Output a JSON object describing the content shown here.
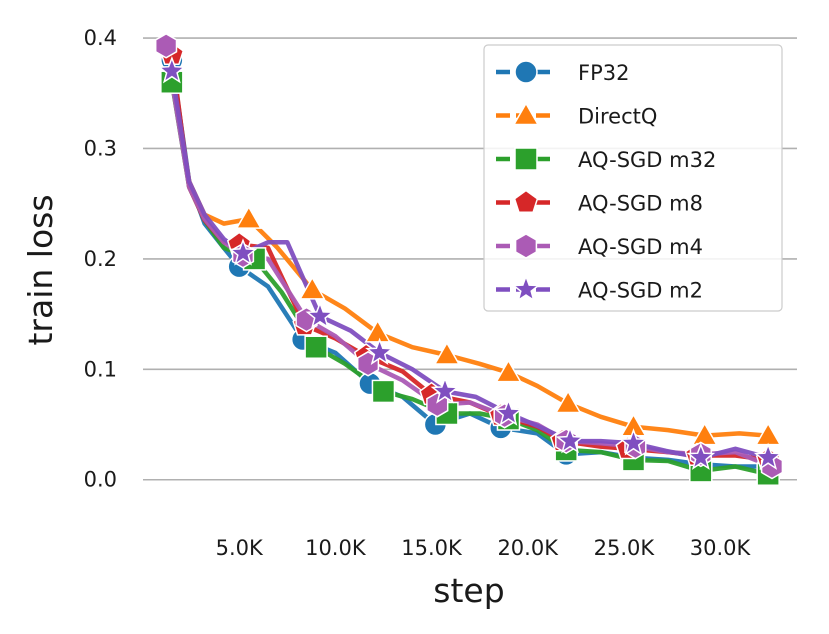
{
  "chart_data": {
    "type": "line",
    "title": "",
    "xlabel": "step",
    "ylabel": "train loss",
    "xlim": [
      0,
      34000
    ],
    "ylim": [
      -0.012,
      0.41
    ],
    "xticks": [
      5000,
      10000,
      15000,
      20000,
      25000,
      30000
    ],
    "xtick_labels": [
      "5.0K",
      "10.0K",
      "15.0K",
      "20.0K",
      "25.0K",
      "30.0K"
    ],
    "yticks": [
      0.0,
      0.1,
      0.2,
      0.3,
      0.4
    ],
    "ytick_labels": [
      "0.0",
      "0.1",
      "0.2",
      "0.3",
      "0.4"
    ],
    "grid": "horizontal",
    "legend_position": "top-right",
    "series": [
      {
        "name": "FP32",
        "color": "#1f77b4",
        "marker": "circle",
        "x": [
          1500,
          2400,
          3200,
          4200,
          5000,
          6500,
          8300,
          10000,
          11800,
          13500,
          15200,
          17000,
          18600,
          20500,
          22000,
          23800,
          25500,
          27300,
          29000,
          30800,
          32500
        ],
        "y": [
          0.38,
          0.27,
          0.232,
          0.21,
          0.193,
          0.175,
          0.127,
          0.115,
          0.087,
          0.075,
          0.05,
          0.06,
          0.047,
          0.042,
          0.023,
          0.025,
          0.02,
          0.018,
          0.014,
          0.012,
          0.012
        ],
        "marker_x": [
          1500,
          5000,
          8300,
          11800,
          15200,
          18600,
          22000,
          25500,
          29000,
          32500
        ],
        "marker_y": [
          0.38,
          0.193,
          0.127,
          0.087,
          0.05,
          0.047,
          0.023,
          0.02,
          0.014,
          0.012
        ]
      },
      {
        "name": "DirectQ",
        "color": "#ff7f0e",
        "marker": "triangle",
        "x": [
          1500,
          2400,
          3200,
          4200,
          5500,
          7000,
          8800,
          10500,
          12200,
          14000,
          15800,
          17500,
          19000,
          20500,
          22100,
          23800,
          25500,
          27300,
          29200,
          31000,
          32500
        ],
        "y": [
          0.37,
          0.27,
          0.24,
          0.232,
          0.236,
          0.21,
          0.172,
          0.155,
          0.133,
          0.12,
          0.113,
          0.105,
          0.097,
          0.085,
          0.069,
          0.057,
          0.048,
          0.045,
          0.04,
          0.042,
          0.04
        ],
        "marker_x": [
          5500,
          8800,
          12200,
          15800,
          19000,
          22100,
          25500,
          29200,
          32500
        ],
        "marker_y": [
          0.236,
          0.172,
          0.133,
          0.113,
          0.097,
          0.069,
          0.048,
          0.04,
          0.04
        ]
      },
      {
        "name": "AQ-SGD m32",
        "color": "#2ca02c",
        "marker": "square",
        "x": [
          1500,
          2400,
          3200,
          4200,
          5800,
          7200,
          9000,
          10500,
          12500,
          14000,
          15800,
          17500,
          19000,
          20500,
          22000,
          23800,
          25500,
          27300,
          29000,
          30800,
          32500
        ],
        "y": [
          0.36,
          0.265,
          0.235,
          0.21,
          0.2,
          0.17,
          0.12,
          0.105,
          0.08,
          0.073,
          0.06,
          0.06,
          0.055,
          0.045,
          0.027,
          0.025,
          0.018,
          0.017,
          0.008,
          0.012,
          0.005
        ],
        "marker_x": [
          1500,
          5800,
          9000,
          12500,
          15800,
          19000,
          22000,
          25500,
          29000,
          32500
        ],
        "marker_y": [
          0.36,
          0.2,
          0.12,
          0.08,
          0.06,
          0.055,
          0.027,
          0.018,
          0.008,
          0.005
        ]
      },
      {
        "name": "AQ-SGD m8",
        "color": "#d62728",
        "marker": "pentagon",
        "x": [
          1500,
          2400,
          3200,
          4200,
          5000,
          6500,
          8400,
          10000,
          11600,
          13500,
          15000,
          17000,
          18600,
          20500,
          21800,
          23800,
          25200,
          27300,
          28800,
          30800,
          32500
        ],
        "y": [
          0.385,
          0.265,
          0.235,
          0.215,
          0.213,
          0.21,
          0.14,
          0.128,
          0.112,
          0.098,
          0.077,
          0.07,
          0.058,
          0.048,
          0.035,
          0.03,
          0.028,
          0.025,
          0.022,
          0.022,
          0.018
        ],
        "marker_x": [
          1500,
          5000,
          8400,
          11600,
          15000,
          18600,
          21800,
          25200,
          28800,
          32500
        ],
        "marker_y": [
          0.385,
          0.213,
          0.14,
          0.112,
          0.077,
          0.058,
          0.035,
          0.028,
          0.022,
          0.018
        ]
      },
      {
        "name": "AQ-SGD m4",
        "color": "#ab5bb5",
        "marker": "hexagon",
        "x": [
          1200,
          2400,
          3200,
          4200,
          5200,
          6500,
          8500,
          10000,
          11700,
          13500,
          15300,
          17000,
          18800,
          20500,
          22000,
          23800,
          25600,
          27300,
          29000,
          30800,
          32700
        ],
        "y": [
          0.393,
          0.265,
          0.236,
          0.215,
          0.203,
          0.2,
          0.145,
          0.13,
          0.105,
          0.09,
          0.068,
          0.07,
          0.058,
          0.05,
          0.035,
          0.033,
          0.03,
          0.025,
          0.023,
          0.025,
          0.012
        ],
        "marker_x": [
          1200,
          5200,
          8500,
          11700,
          15300,
          18800,
          22000,
          25600,
          29000,
          32700
        ],
        "marker_y": [
          0.393,
          0.203,
          0.145,
          0.105,
          0.068,
          0.058,
          0.035,
          0.03,
          0.023,
          0.012
        ]
      },
      {
        "name": "AQ-SGD m2",
        "color": "#7f4fc0",
        "marker": "star",
        "x": [
          1500,
          2400,
          3200,
          4200,
          5200,
          6500,
          7500,
          9200,
          10800,
          12300,
          14000,
          15700,
          17300,
          19000,
          20600,
          22200,
          23800,
          25500,
          27200,
          29000,
          30800,
          32500
        ],
        "y": [
          0.37,
          0.27,
          0.24,
          0.218,
          0.205,
          0.215,
          0.215,
          0.148,
          0.135,
          0.115,
          0.1,
          0.08,
          0.075,
          0.06,
          0.048,
          0.035,
          0.035,
          0.033,
          0.026,
          0.02,
          0.028,
          0.02
        ],
        "marker_x": [
          1500,
          5200,
          9200,
          12300,
          15700,
          19000,
          22200,
          25500,
          29000,
          32500
        ],
        "marker_y": [
          0.37,
          0.205,
          0.148,
          0.115,
          0.08,
          0.06,
          0.035,
          0.033,
          0.02,
          0.02
        ]
      }
    ]
  }
}
